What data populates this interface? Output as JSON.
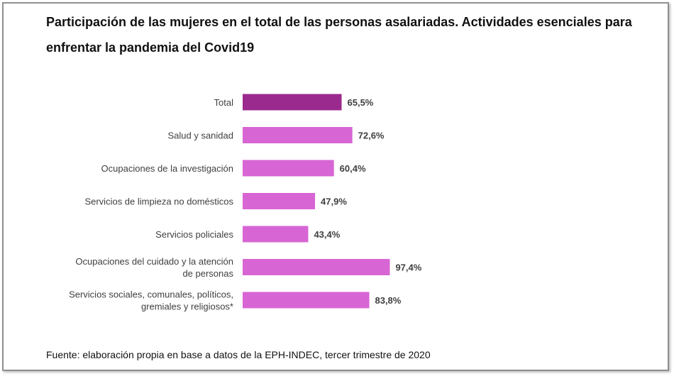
{
  "chart_data": {
    "type": "bar",
    "orientation": "horizontal",
    "title": "Participación de las mujeres en el total de las personas asalariadas. Actividades esenciales para enfrentar la pandemia del Covid19",
    "categories": [
      [
        "Total"
      ],
      [
        "Salud y sanidad"
      ],
      [
        "Ocupaciones de la investigación"
      ],
      [
        "Servicios de limpieza no domésticos"
      ],
      [
        "Servicios policiales"
      ],
      [
        "Ocupaciones del cuidado y la atención",
        "de personas"
      ],
      [
        "Servicios sociales, comunales, políticos,",
        "gremiales y religiosos*"
      ]
    ],
    "values": [
      65.5,
      72.6,
      60.4,
      47.9,
      43.4,
      97.4,
      83.8
    ],
    "value_labels": [
      "65,5%",
      "72,6%",
      "60,4%",
      "47,9%",
      "43,4%",
      "97,4%",
      "83,8%"
    ],
    "colors": [
      "#9b2a8e",
      "#d865d4",
      "#d865d4",
      "#d865d4",
      "#d865d4",
      "#d865d4",
      "#d865d4"
    ],
    "xlim": [
      0,
      100
    ],
    "grid": false,
    "legend": "none"
  },
  "source": "Fuente: elaboración propia en base a datos de la EPH-INDEC, tercer trimestre de 2020"
}
